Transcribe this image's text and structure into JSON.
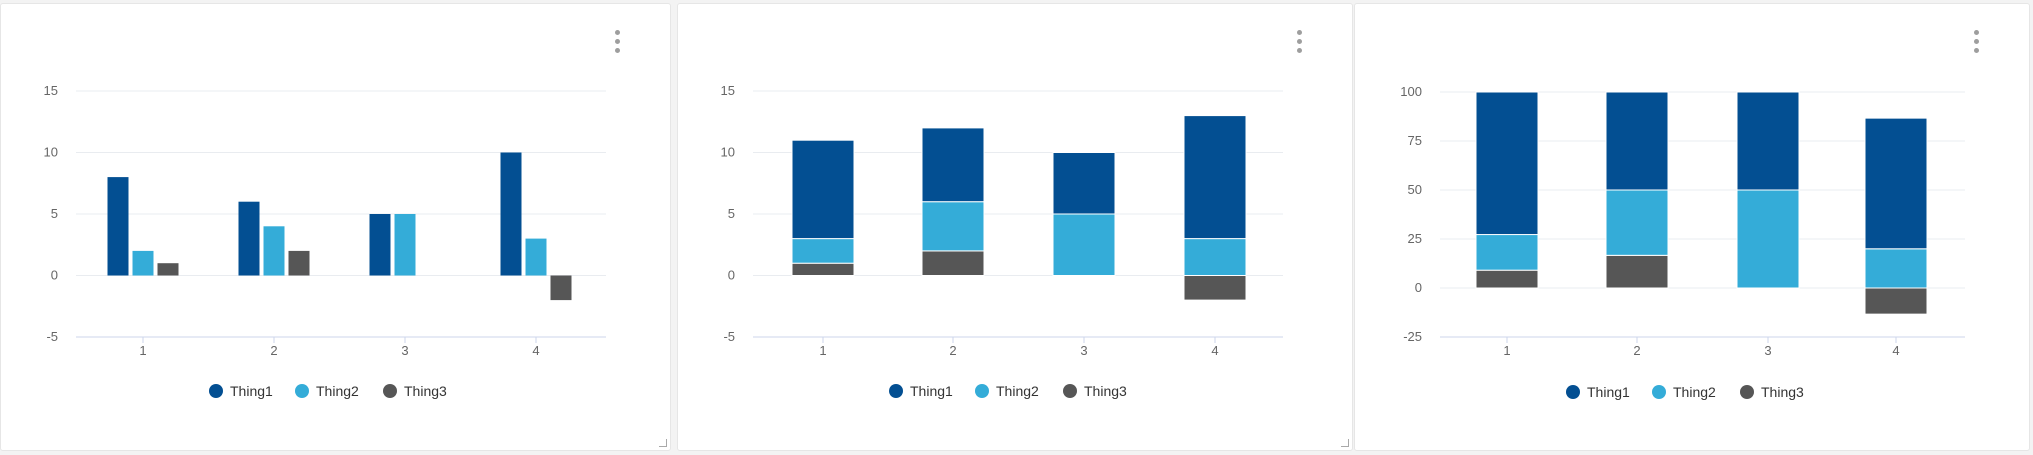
{
  "colors": {
    "Thing1": "#034f92",
    "Thing2": "#34acd8",
    "Thing3": "#565656",
    "gridline": "#e9ecf0",
    "axis": "#ccd6eb"
  },
  "chart_data": [
    {
      "type": "bar",
      "stacking": "none",
      "categories": [
        "1",
        "2",
        "3",
        "4"
      ],
      "series": [
        {
          "name": "Thing1",
          "values": [
            8,
            6,
            5,
            10
          ]
        },
        {
          "name": "Thing2",
          "values": [
            2,
            4,
            5,
            3
          ]
        },
        {
          "name": "Thing3",
          "values": [
            1,
            2,
            0,
            -2
          ]
        }
      ],
      "ylim": [
        -5,
        15
      ],
      "yticks": [
        15,
        10,
        5,
        0,
        -5
      ],
      "grid": true,
      "legend_position": "bottom-center"
    },
    {
      "type": "bar",
      "stacking": "normal",
      "categories": [
        "1",
        "2",
        "3",
        "4"
      ],
      "series": [
        {
          "name": "Thing1",
          "values": [
            8,
            6,
            5,
            10
          ]
        },
        {
          "name": "Thing2",
          "values": [
            2,
            4,
            5,
            3
          ]
        },
        {
          "name": "Thing3",
          "values": [
            1,
            2,
            0,
            -2
          ]
        }
      ],
      "ylim": [
        -5,
        15
      ],
      "yticks": [
        15,
        10,
        5,
        0,
        -5
      ],
      "grid": true,
      "legend_position": "bottom-center"
    },
    {
      "type": "bar",
      "stacking": "percent",
      "categories": [
        "1",
        "2",
        "3",
        "4"
      ],
      "series": [
        {
          "name": "Thing1",
          "values": [
            8,
            6,
            5,
            10
          ]
        },
        {
          "name": "Thing2",
          "values": [
            2,
            4,
            5,
            3
          ]
        },
        {
          "name": "Thing3",
          "values": [
            1,
            2,
            0,
            -2
          ]
        }
      ],
      "ylim": [
        -25,
        100
      ],
      "yticks": [
        100,
        75,
        50,
        25,
        0,
        -25
      ],
      "grid": true,
      "legend_position": "bottom-center"
    }
  ]
}
